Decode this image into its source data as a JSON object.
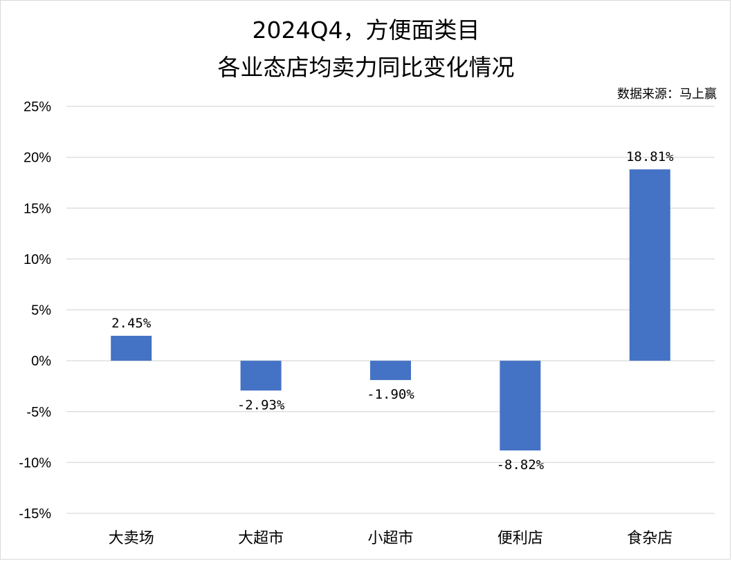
{
  "title_line1": "2024Q4，方便面类目",
  "title_line2": "各业态店均卖力同比变化情况",
  "source": "数据来源：马上赢",
  "chart_data": {
    "type": "bar",
    "title": "2024Q4，方便面类目 各业态店均卖力同比变化情况",
    "categories": [
      "大卖场",
      "大超市",
      "小超市",
      "便利店",
      "食杂店"
    ],
    "values": [
      2.45,
      -2.93,
      -1.9,
      -8.82,
      18.81
    ],
    "data_labels": [
      "2.45%",
      "-2.93%",
      "-1.90%",
      "-8.82%",
      "18.81%"
    ],
    "y_ticks": [
      "25%",
      "20%",
      "15%",
      "10%",
      "5%",
      "0%",
      "-5%",
      "-10%",
      "-15%"
    ],
    "ylim": [
      -15,
      25
    ],
    "grid": true,
    "bar_color": "#4472C4",
    "grid_color": "#d9d9d9"
  }
}
